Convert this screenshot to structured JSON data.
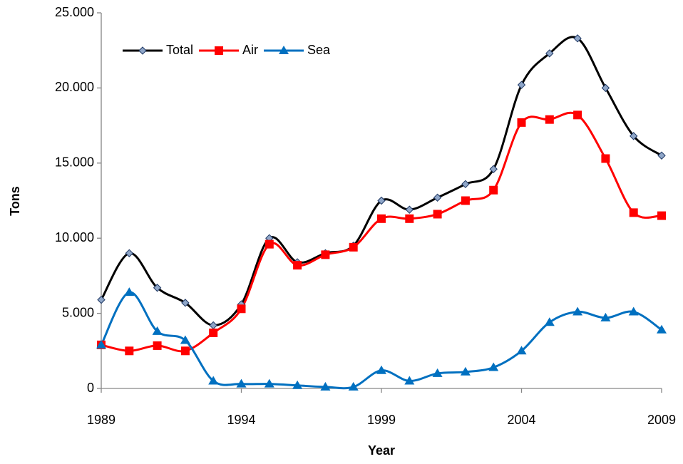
{
  "chart_data": {
    "type": "line",
    "x_label": "Year",
    "y_label": "Tons",
    "x": [
      1989,
      1990,
      1991,
      1992,
      1993,
      1994,
      1995,
      1996,
      1997,
      1998,
      1999,
      2000,
      2001,
      2002,
      2003,
      2004,
      2005,
      2006,
      2007,
      2008,
      2009
    ],
    "series": [
      {
        "name": "Total",
        "color": "#000000",
        "marker": "diamond",
        "marker_color": "#8fa6c8",
        "values": [
          5900,
          9000,
          6700,
          5700,
          4200,
          5600,
          10000,
          8400,
          9000,
          9500,
          12500,
          11900,
          12700,
          13600,
          14600,
          20200,
          22300,
          23300,
          20000,
          16800,
          15500
        ]
      },
      {
        "name": "Air",
        "color": "#ff0000",
        "marker": "square",
        "marker_color": "#ff0000",
        "values": [
          2900,
          2500,
          2850,
          2500,
          3700,
          5300,
          9600,
          8200,
          8900,
          9400,
          11300,
          11300,
          11600,
          12500,
          13200,
          17700,
          17900,
          18200,
          15300,
          11700,
          11500
        ]
      },
      {
        "name": "Sea",
        "color": "#0070c0",
        "marker": "triangle",
        "marker_color": "#0070c0",
        "values": [
          2900,
          6400,
          3800,
          3200,
          500,
          300,
          300,
          200,
          100,
          100,
          1200,
          500,
          1000,
          1100,
          1400,
          2500,
          4400,
          5100,
          4700,
          5100,
          3900
        ]
      }
    ],
    "xlim": [
      1989,
      2009
    ],
    "xticks": [
      1989,
      1994,
      1999,
      2004,
      2009
    ],
    "ylim": [
      0,
      25000
    ],
    "yticks": [
      0,
      {
        "value": 5000,
        "label": "5.000"
      },
      {
        "value": 10000,
        "label": "10.000"
      },
      {
        "value": 15000,
        "label": "15.000"
      },
      {
        "value": 20000,
        "label": "20.000"
      },
      {
        "value": 25000,
        "label": "25.000"
      }
    ],
    "smooth": true,
    "legend": "top-left"
  }
}
